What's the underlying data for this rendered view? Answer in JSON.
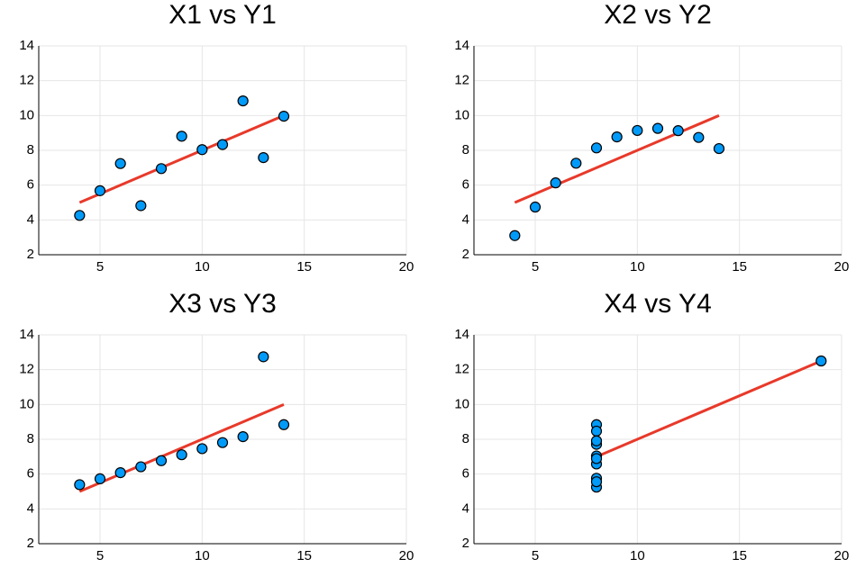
{
  "chart_data": [
    {
      "type": "scatter",
      "title": "X1 vs Y1",
      "series": [
        {
          "mode": "markers",
          "color": "#009af9",
          "x": [
            10,
            8,
            13,
            9,
            11,
            14,
            6,
            4,
            12,
            7,
            5
          ],
          "values": [
            8.04,
            6.95,
            7.58,
            8.81,
            8.33,
            9.96,
            7.24,
            4.26,
            10.84,
            4.82,
            5.68
          ]
        },
        {
          "mode": "line",
          "color": "#e8392a",
          "x": [
            4,
            14
          ],
          "values": [
            5,
            10
          ]
        }
      ],
      "xlim": [
        2,
        20
      ],
      "xticks": [
        5,
        10,
        15,
        20
      ],
      "ylim": [
        2,
        14
      ],
      "yticks": [
        2,
        4,
        6,
        8,
        10,
        12,
        14
      ],
      "grid": true
    },
    {
      "type": "scatter",
      "title": "X2 vs Y2",
      "series": [
        {
          "mode": "markers",
          "color": "#009af9",
          "x": [
            10,
            8,
            13,
            9,
            11,
            14,
            6,
            4,
            12,
            7,
            5
          ],
          "values": [
            9.14,
            8.14,
            8.74,
            8.77,
            9.26,
            8.1,
            6.13,
            3.1,
            9.13,
            7.26,
            4.74
          ]
        },
        {
          "mode": "line",
          "color": "#e8392a",
          "x": [
            4,
            14
          ],
          "values": [
            5,
            10
          ]
        }
      ],
      "xlim": [
        2,
        20
      ],
      "xticks": [
        5,
        10,
        15,
        20
      ],
      "ylim": [
        2,
        14
      ],
      "yticks": [
        2,
        4,
        6,
        8,
        10,
        12,
        14
      ],
      "grid": true
    },
    {
      "type": "scatter",
      "title": "X3 vs Y3",
      "series": [
        {
          "mode": "markers",
          "color": "#009af9",
          "x": [
            10,
            8,
            13,
            9,
            11,
            14,
            6,
            4,
            12,
            7,
            5
          ],
          "values": [
            7.46,
            6.77,
            12.74,
            7.11,
            7.81,
            8.84,
            6.08,
            5.39,
            8.15,
            6.42,
            5.73
          ]
        },
        {
          "mode": "line",
          "color": "#e8392a",
          "x": [
            4,
            14
          ],
          "values": [
            5,
            10
          ]
        }
      ],
      "xlim": [
        2,
        20
      ],
      "xticks": [
        5,
        10,
        15,
        20
      ],
      "ylim": [
        2,
        14
      ],
      "yticks": [
        2,
        4,
        6,
        8,
        10,
        12,
        14
      ],
      "grid": true
    },
    {
      "type": "scatter",
      "title": "X4 vs Y4",
      "series": [
        {
          "mode": "markers",
          "color": "#009af9",
          "x": [
            8,
            8,
            8,
            8,
            8,
            8,
            8,
            19,
            8,
            8,
            8
          ],
          "values": [
            6.58,
            5.76,
            7.71,
            8.84,
            8.47,
            7.04,
            5.25,
            12.5,
            5.56,
            7.91,
            6.89
          ]
        },
        {
          "mode": "line",
          "color": "#e8392a",
          "x": [
            8,
            19
          ],
          "values": [
            7,
            12.5
          ]
        }
      ],
      "xlim": [
        2,
        20
      ],
      "xticks": [
        5,
        10,
        15,
        20
      ],
      "ylim": [
        2,
        14
      ],
      "yticks": [
        2,
        4,
        6,
        8,
        10,
        12,
        14
      ],
      "grid": true
    }
  ]
}
